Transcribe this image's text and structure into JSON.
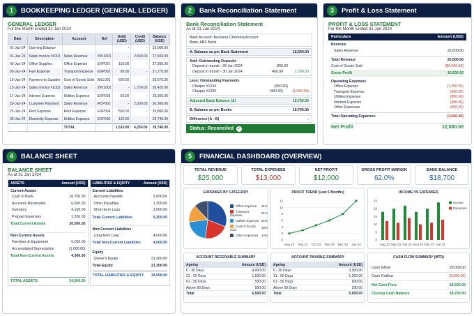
{
  "ledger": {
    "num": "1",
    "header": "BOOKKEEPING LEDGER (GENERAL LEDGER)",
    "title": "GENERAL LEDGER",
    "subtitle": "For the Month Ended 31 Jan 2024",
    "columns": [
      "Date",
      "Description",
      "Account",
      "Ref",
      "Debit (USD)",
      "Credit (USD)",
      "Balance (USD)"
    ],
    "rows": [
      [
        "01-Jan-24",
        "Opening Balance",
        "",
        "",
        "-",
        "-",
        "25,000.00"
      ],
      [
        "01-Jan-24",
        "Sales Invoice #1001",
        "Sales Revenue",
        "INV1001",
        "-",
        "2,500.00",
        "27,500.00"
      ],
      [
        "03-Jan-24",
        "Office Supplies",
        "Office Expense",
        "EXP001",
        "150.00",
        "-",
        "27,350.00"
      ],
      [
        "05-Jan-24",
        "Fuel Expense",
        "Transport Expense",
        "EXP002",
        "80.00",
        "-",
        "27,270.00"
      ],
      [
        "10-Jan-24",
        "Payment to Supplier",
        "Cost of Goods Sold",
        "BILL001",
        "600.00",
        "-",
        "26,670.00"
      ],
      [
        "15-Jan-24",
        "Sales Invoice #1002",
        "Sales Revenue",
        "INV1002",
        "-",
        "1,750.00",
        "28,420.00"
      ],
      [
        "17-Jan-24",
        "Internet Expense",
        "Utilities Expense",
        "EXP003",
        "60.00",
        "-",
        "28,360.00"
      ],
      [
        "20-Jan-24",
        "Customer Payment",
        "Sales Revenue",
        "RCP001",
        "-",
        "2,000.00",
        "30,360.00"
      ],
      [
        "25-Jan-24",
        "Rent Expense",
        "Rent Expense",
        "EXP004",
        "500.00",
        "-",
        "29,860.00"
      ],
      [
        "30-Jan-24",
        "Electricity Expense",
        "Utilities Expense",
        "EXP005",
        "120.00",
        "-",
        "29,740.00"
      ]
    ],
    "total": {
      "label": "TOTAL",
      "debit": "1,510.00",
      "credit": "6,250.00",
      "balance": "29,740.00"
    }
  },
  "recon": {
    "num": "2",
    "header": "Bank Reconciliation Statement",
    "title": "Bank Reconciliation Statement",
    "subtitle": "As at 31 Jan 2024",
    "bank_account": "Bank Account: Business Checking Account",
    "bank": "Bank: ABC Bank",
    "a_label": "A. Balance as per Bank Statement",
    "a_value": "18,550.00",
    "add_label": "Add: Outstanding Deposits",
    "deposits": [
      {
        "label": "Deposit in transit - 28 Jan 2024",
        "value": "800.00"
      },
      {
        "label": "Deposit in transit - 30 Jan 2024",
        "value": "400.00"
      }
    ],
    "add_total": "1,200.00",
    "less_label": "Less: Outstanding Payments",
    "payments": [
      {
        "label": "Cheque #1234",
        "value": "(650.00)"
      },
      {
        "label": "Cheque #1235",
        "value": "(400.00)"
      }
    ],
    "less_total": "(1,050.00)",
    "adj_label": "Adjusted Bank Balance (A)",
    "adj_value": "18,700.00",
    "b_label": "B. Balance as per Books",
    "b_value": "18,700.00",
    "diff_label": "Difference (A - B)",
    "diff_value": "-",
    "status": "Status: Reconciled"
  },
  "pl": {
    "num": "3",
    "header": "Profit & Loss Statement",
    "title": "PROFIT & LOSS STATEMENT",
    "subtitle": "For the Month Ended 31 Jan 2024",
    "col1": "Particulars",
    "col2": "Amount (USD)",
    "revenue_label": "Revenue",
    "sales_label": "Sales Revenue",
    "sales_value": "25,000.00",
    "total_rev_label": "Total Revenue",
    "total_rev_value": "25,000.00",
    "cogs_label": "Cost of Goods Sold",
    "cogs_value": "($9,500.00)",
    "gross_label": "Gross Profit",
    "gross_value": "15,500.00",
    "opex_label": "Operating Expenses",
    "expenses": [
      {
        "label": "Office Expense",
        "value": "(1,200.00)"
      },
      {
        "label": "Transport Expense",
        "value": "(600.00)"
      },
      {
        "label": "Utilities Expense",
        "value": "(800.00)"
      },
      {
        "label": "Internet Expense",
        "value": "(300.00)"
      },
      {
        "label": "Other Expenses",
        "value": "(600.00)"
      }
    ],
    "total_opex_label": "Total Operating Expenses",
    "total_opex_value": "(3,500.00)",
    "net_label": "Net Profit",
    "net_value": "12,000.00"
  },
  "bs": {
    "num": "4",
    "header": "BALANCE SHEET",
    "title": "BALANCE SHEET",
    "subtitle": "As at 31 Jan 2024",
    "assets_h": "ASSETS",
    "amt_h": "Amount (USD)",
    "liab_h": "LIABILITIES & EQUITY",
    "current_assets_label": "Current Assets",
    "current_assets": [
      {
        "label": "Cash in Bank",
        "value": "18,700.00"
      },
      {
        "label": "Accounts Receivable",
        "value": "6,500.00"
      },
      {
        "label": "Inventory",
        "value": "4,100.00"
      },
      {
        "label": "Prepaid Expenses",
        "value": "1,200.00"
      }
    ],
    "total_ca_label": "Total Current Assets",
    "total_ca_value": "30,500.00",
    "noncurrent_assets_label": "Non-Current Assets",
    "noncurrent_assets": [
      {
        "label": "Furniture & Equipment",
        "value": "5,000.00"
      },
      {
        "label": "Accumulated Depreciation",
        "value": "(1,000.00)"
      }
    ],
    "total_nca_label": "Total Non-Current Assets",
    "total_nca_value": "4,000.00",
    "total_assets_label": "TOTAL ASSETS",
    "total_assets_value": "34,500.00",
    "current_liab_label": "Current Liabilities",
    "current_liab": [
      {
        "label": "Accounts Payable",
        "value": "5,000.00"
      },
      {
        "label": "Other Payables",
        "value": "1,200.00"
      },
      {
        "label": "Short-term Loan",
        "value": "3,000.00"
      }
    ],
    "total_cl_label": "Total Current Liabilities",
    "total_cl_value": "9,200.00",
    "noncurrent_liab_label": "Non-Current Liabilities",
    "noncurrent_liab": [
      {
        "label": "Long-term Loan",
        "value": "4,000.00"
      }
    ],
    "total_ncl_label": "Total Non-Current Liabilities",
    "total_ncl_value": "4,000.00",
    "equity_label": "Equity",
    "equity": [
      {
        "label": "Owner's Equity",
        "value": "21,300.00"
      }
    ],
    "total_equity_label": "Total Equity",
    "total_equity_value": "21,300.00",
    "total_le_label": "TOTAL LIABILITIES & EQUITY",
    "total_le_value": "34,500.00"
  },
  "dash": {
    "num": "5",
    "header": "FINANCIAL DASHBOARD (OVERVIEW)",
    "kpis": [
      {
        "label": "TOTAL REVENUE",
        "value": "$25,000",
        "color": "#1f8a3a"
      },
      {
        "label": "TOTAL EXPENSES",
        "value": "$13,000",
        "color": "#c0392b"
      },
      {
        "label": "NET PROFIT",
        "value": "$12,000",
        "color": "#1f8a3a"
      },
      {
        "label": "GROSS PROFIT MARGIN",
        "value": "62.0%",
        "color": "#1f5fa8"
      },
      {
        "label": "BANK BALANCE",
        "value": "$18,700",
        "color": "#1f5fa8"
      }
    ],
    "ar": {
      "title": "ACCOUNT RECEIVABLE SUMMARY",
      "col1": "Ageing",
      "col2": "Amount (USD)",
      "rows": [
        {
          "label": "0 - 30 Days",
          "value": "4,000.00"
        },
        {
          "label": "31 - 60 Days",
          "value": "1,500.00"
        },
        {
          "label": "61 - 90 Days",
          "value": "500.00"
        },
        {
          "label": "Above 90 Days",
          "value": "500.00"
        }
      ],
      "total_label": "Total",
      "total_value": "6,500.00"
    },
    "ap": {
      "title": "ACCOUNT PAYABLE SUMMARY",
      "col1": "Ageing",
      "col2": "Amount (USD)",
      "rows": [
        {
          "label": "0 - 30 Days",
          "value": "3,000.00"
        },
        {
          "label": "31 - 60 Days",
          "value": "1,200.00"
        },
        {
          "label": "61 - 90 Days",
          "value": "600.00"
        },
        {
          "label": "Above 90 Days",
          "value": "200.00"
        }
      ],
      "total_label": "Total",
      "total_value": "5,000.00"
    },
    "cash": {
      "title": "CASH FLOW SUMMARY (MTD)",
      "rows": [
        {
          "label": "Cash Inflow",
          "value": "28,000.00",
          "color": "#1a2340"
        },
        {
          "label": "Cash Outflow",
          "value": "(9,500.00)",
          "color": "#c0392b"
        },
        {
          "label": "Net Cash Flow",
          "value": "18,500.00",
          "color": "#1f8a3a"
        },
        {
          "label": "Closing Cash Balance",
          "value": "18,700.00",
          "color": "#1f8a3a"
        }
      ]
    }
  },
  "chart_data": [
    {
      "type": "pie",
      "title": "EXPENSES BY CATEGORY",
      "categories": [
        "Office Expense",
        "Transport Expense",
        "Utilities Expense",
        "Cost of Goods Sold",
        "Other Expenses"
      ],
      "values": [
        31,
        21,
        21,
        15,
        12
      ],
      "value_labels": [
        "31%",
        "21%",
        "21%",
        "15%",
        "12%"
      ],
      "colors": [
        "#1f4e9c",
        "#d9342b",
        "#2b8fd6",
        "#f2a03d",
        "#3f4f6b"
      ]
    },
    {
      "type": "line",
      "title": "PROFIT TREND (Last 6 Months)",
      "categories": [
        "Aug 23",
        "Sep 23",
        "Oct 23",
        "Nov 23",
        "Dec 23",
        "Jan 24"
      ],
      "values": [
        2,
        3,
        4.5,
        6,
        8,
        12
      ],
      "yticks": [
        "0",
        "2",
        "4",
        "6",
        "8",
        "10",
        "12"
      ],
      "ylim": [
        0,
        12
      ],
      "color": "#1f8a3a"
    },
    {
      "type": "bar",
      "title": "INCOME VS EXPENSES",
      "categories": [
        "Aug 23",
        "Sep 23",
        "Oct 23",
        "Nov 23",
        "Dec 23",
        "Jan 24"
      ],
      "yticks": [
        "0",
        "5",
        "10",
        "15",
        "20",
        "25"
      ],
      "ylim": [
        0,
        25
      ],
      "series": [
        {
          "name": "Income",
          "values": [
            18,
            20,
            22,
            18,
            20,
            24
          ],
          "color": "#1f8a3a"
        },
        {
          "name": "Expenses",
          "values": [
            12,
            11,
            14,
            10,
            11,
            13
          ],
          "color": "#d9342b"
        }
      ],
      "legend": "top-right"
    }
  ]
}
